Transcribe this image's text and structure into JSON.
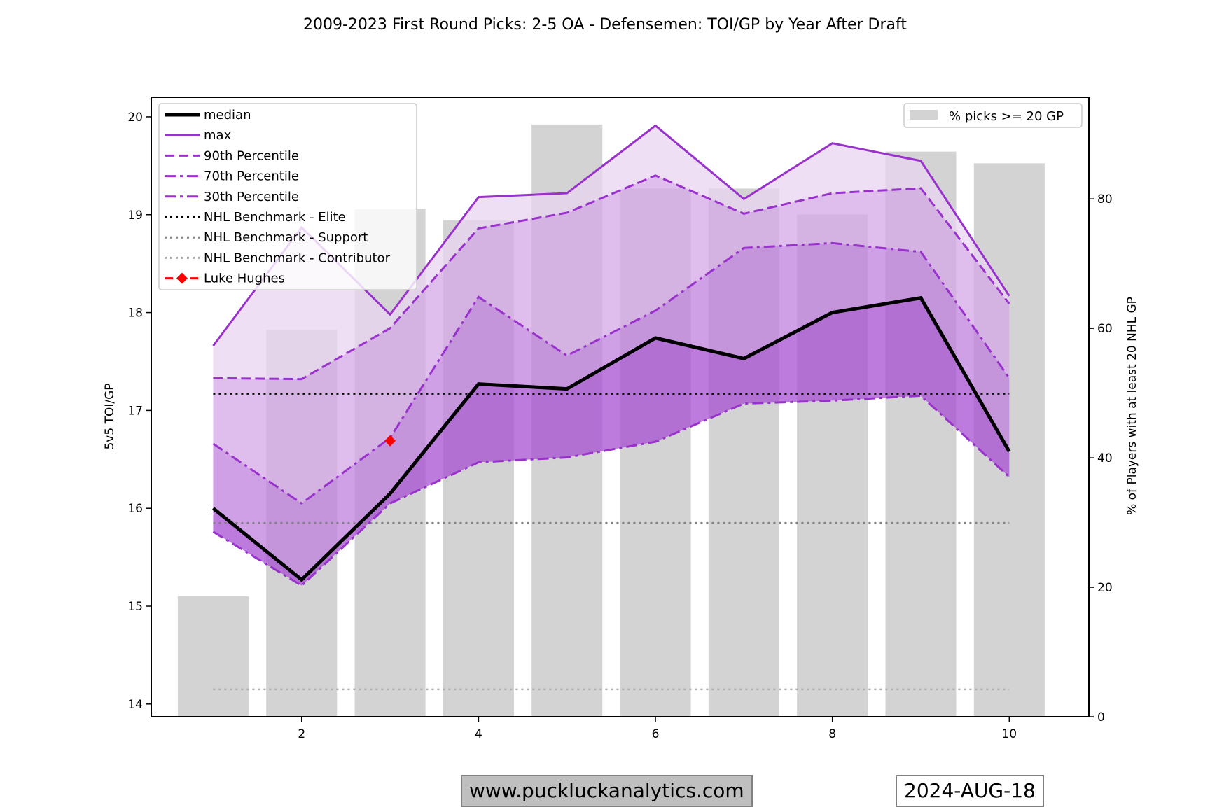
{
  "chart_data": {
    "type": "line",
    "title": "2009-2023 First Round Picks: 2-5 OA - Defensemen: TOI/GP by Year After Draft",
    "xlabel": "",
    "ylabel": "5v5 TOI/GP",
    "y2label": "% of Players with at least 20 NHL GP",
    "x": [
      1,
      2,
      3,
      4,
      5,
      6,
      7,
      8,
      9,
      10
    ],
    "xlim": [
      0.3,
      10.9
    ],
    "ylim": [
      13.87,
      20.2
    ],
    "y2lim": [
      0,
      95.7
    ],
    "xticks": [
      2,
      4,
      6,
      8,
      10
    ],
    "yticks": [
      14,
      15,
      16,
      17,
      18,
      19,
      20
    ],
    "y2ticks": [
      0,
      20,
      40,
      60,
      80
    ],
    "grid": false,
    "series": [
      {
        "name": "median",
        "style": "solid",
        "color": "#000000",
        "values": [
          16.0,
          15.27,
          16.15,
          17.27,
          17.22,
          17.74,
          17.53,
          18.0,
          18.15,
          16.58
        ]
      },
      {
        "name": "max",
        "style": "solid",
        "color": "#9932CC",
        "values": [
          17.66,
          18.87,
          17.98,
          19.18,
          19.22,
          19.91,
          19.16,
          19.73,
          19.55,
          18.17
        ]
      },
      {
        "name": "90th Percentile",
        "style": "dashed",
        "color": "#9932CC",
        "values": [
          17.33,
          17.32,
          17.84,
          18.86,
          19.02,
          19.4,
          19.01,
          19.22,
          19.27,
          18.09
        ]
      },
      {
        "name": "70th Percentile",
        "style": "dashdot",
        "color": "#9932CC",
        "values": [
          16.66,
          16.05,
          16.72,
          18.16,
          17.56,
          18.02,
          18.66,
          18.71,
          18.62,
          17.33
        ]
      },
      {
        "name": "30th Percentile",
        "style": "dashdot",
        "color": "#9932CC",
        "values": [
          15.76,
          15.21,
          16.05,
          16.47,
          16.52,
          16.68,
          17.07,
          17.1,
          17.15,
          16.32
        ]
      },
      {
        "name": "NHL Benchmark - Elite",
        "style": "dotted",
        "color": "#000000",
        "constant": 17.17
      },
      {
        "name": "NHL Benchmark - Support",
        "style": "dotted",
        "color": "#808080",
        "constant": 15.85
      },
      {
        "name": "NHL Benchmark - Contributor",
        "style": "dotted",
        "color": "#aaaaaa",
        "constant": 14.15
      },
      {
        "name": "Luke Hughes",
        "style": "diamond-marker",
        "color": "#ff0000",
        "points": [
          {
            "x": 3,
            "y": 16.69
          }
        ]
      }
    ],
    "bars": {
      "name": "% picks >= 20 GP",
      "color": "#d3d3d3",
      "axis": "right",
      "values": [
        18.6,
        59.8,
        78.4,
        76.7,
        91.5,
        81.6,
        81.6,
        77.6,
        87.3,
        85.5
      ]
    },
    "fills": [
      {
        "between": [
          "max",
          "90th Percentile"
        ],
        "color": "#e8d4f2"
      },
      {
        "between": [
          "90th Percentile",
          "70th Percentile"
        ],
        "color": "#d4a8e8"
      },
      {
        "between": [
          "70th Percentile",
          "median"
        ],
        "color": "#c080df"
      },
      {
        "between": [
          "median",
          "30th Percentile"
        ],
        "color": "#a84fd3"
      }
    ],
    "legend": {
      "placement": "top-left",
      "entries": [
        "median",
        "max",
        "90th Percentile",
        "70th Percentile",
        "30th Percentile",
        "NHL Benchmark - Elite",
        "NHL Benchmark - Support",
        "NHL Benchmark - Contributor",
        "Luke Hughes"
      ]
    },
    "legend2": {
      "placement": "top-right",
      "entries": [
        "% picks >= 20 GP"
      ]
    }
  },
  "footer": {
    "website": "www.puckluckanalytics.com",
    "date": "2024-AUG-18"
  }
}
